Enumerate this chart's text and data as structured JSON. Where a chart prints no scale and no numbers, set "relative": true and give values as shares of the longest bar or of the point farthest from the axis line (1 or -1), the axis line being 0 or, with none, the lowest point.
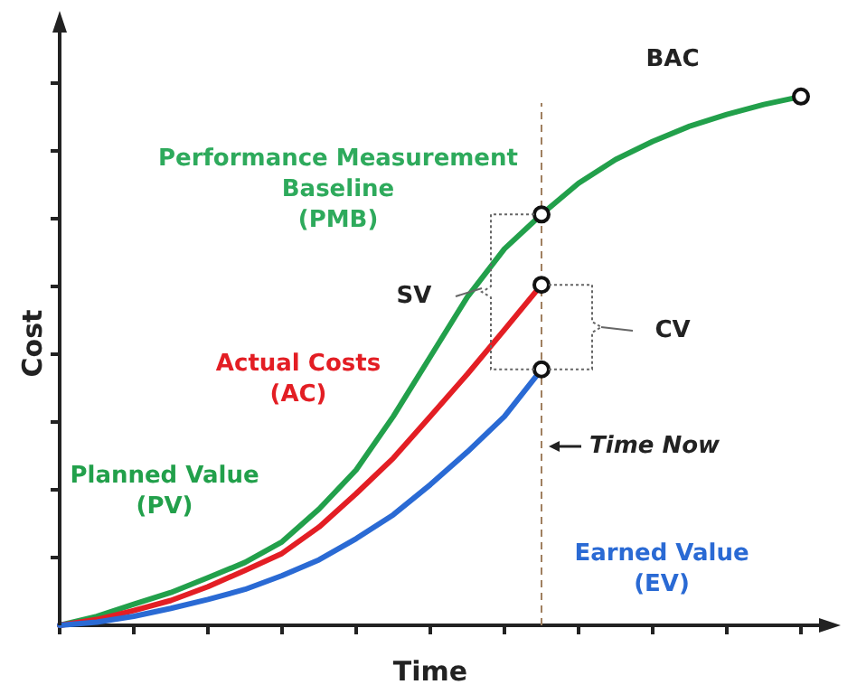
{
  "chart_data": {
    "type": "line",
    "relative": true,
    "xlabel": "Time",
    "ylabel": "Cost",
    "line_style": "solid",
    "grid": false,
    "legend": false,
    "categories": [
      null,
      null,
      null,
      null,
      null,
      null,
      null,
      null,
      null,
      null,
      null,
      null,
      null,
      null,
      null,
      null,
      null,
      null,
      null,
      null,
      null
    ],
    "series": [
      {
        "name": "Planned Value (PV)",
        "color": "#22a04b",
        "values": [
          0,
          0.017,
          0.04,
          0.062,
          0.09,
          0.119,
          0.158,
          0.22,
          0.294,
          0.395,
          0.508,
          0.621,
          0.712,
          0.777,
          0.836,
          0.881,
          0.915,
          0.944,
          0.966,
          0.985,
          1
        ]
      },
      {
        "name": "Actual Costs (AC)",
        "color": "#e31e24",
        "values": [
          0,
          0.011,
          0.028,
          0.047,
          0.073,
          0.104,
          0.136,
          0.186,
          0.249,
          0.316,
          0.395,
          0.475,
          0.559,
          0.644,
          null,
          null,
          null,
          null,
          null,
          null,
          null
        ]
      },
      {
        "name": "Earned Value (EV)",
        "color": "#2a6ad4",
        "values": [
          0,
          0.006,
          0.017,
          0.032,
          0.049,
          0.068,
          0.094,
          0.124,
          0.164,
          0.209,
          0.266,
          0.328,
          0.395,
          0.484,
          null,
          null,
          null,
          null,
          null,
          null,
          null
        ]
      }
    ],
    "annotations": [
      "Performance Measurement\nBaseline\n(PMB)",
      "BAC",
      "SV",
      "CV",
      "Time Now"
    ]
  }
}
